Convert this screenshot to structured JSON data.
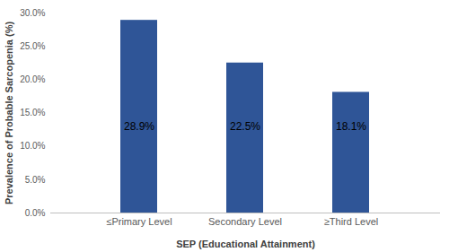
{
  "chart_data": {
    "type": "bar",
    "x_label": "SEP (Educational Attainment)",
    "y_label": "Prevalence of Probable Sarcopenia (%)",
    "categories": [
      "≤Primary Level",
      "Secondary Level",
      "≥Third Level"
    ],
    "values": [
      28.9,
      22.5,
      18.1
    ],
    "value_labels": [
      "28.9%",
      "22.5%",
      "18.1%"
    ],
    "color": "#2f5597",
    "ylim": [
      0,
      30
    ],
    "yticks": [
      {
        "value": 0,
        "label": "0.0%"
      },
      {
        "value": 5,
        "label": "5.0%"
      },
      {
        "value": 10,
        "label": "10.0%"
      },
      {
        "value": 15,
        "label": "15.0%"
      },
      {
        "value": 20,
        "label": "20.0%"
      },
      {
        "value": 25,
        "label": "25.0%"
      },
      {
        "value": 30,
        "label": "30.0%"
      }
    ],
    "grid": false,
    "data_labels": true
  }
}
